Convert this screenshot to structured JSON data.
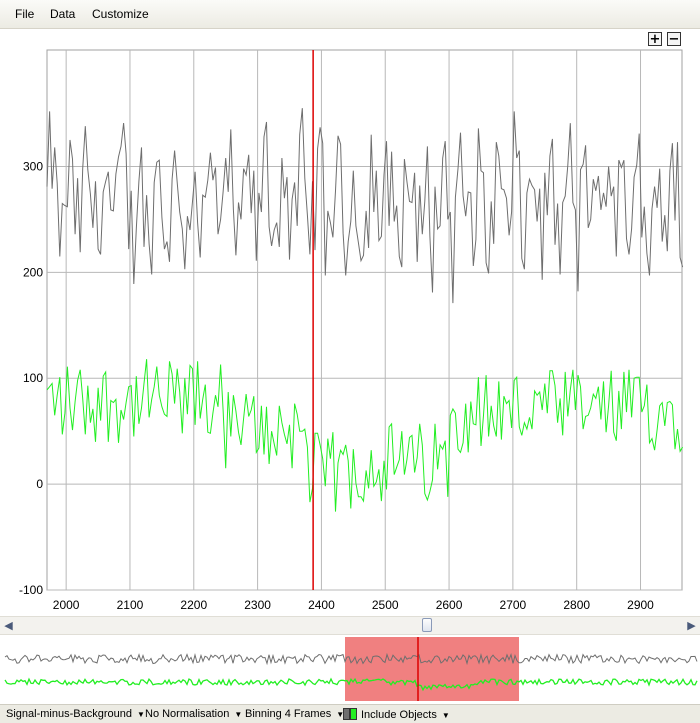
{
  "menu": {
    "items": [
      "File",
      "Data",
      "Customize"
    ]
  },
  "zoom": {
    "plus_label": "+",
    "minus_label": "−"
  },
  "chart_data": {
    "type": "line",
    "xlim": [
      1970,
      2965
    ],
    "ylim": [
      -100,
      410
    ],
    "x_ticks": [
      2000,
      2100,
      2200,
      2300,
      2400,
      2500,
      2600,
      2700,
      2800,
      2900
    ],
    "y_ticks": [
      -100,
      0,
      100,
      200,
      300
    ],
    "grid": true,
    "cursor_x": 2387,
    "x_start": 1970,
    "x_step": 4,
    "series": [
      {
        "color": "#6e6e6e",
        "values": []
      },
      {
        "color": "#22ee22",
        "values": []
      }
    ]
  },
  "overview": {
    "highlight_color": "#f08080",
    "cursor_color": "#dd0000"
  },
  "status": {
    "mode": "Signal-minus-Background",
    "normalisation": "No Normalisation",
    "binning": "Binning 4 Frames",
    "include": "Include Objects"
  },
  "colors": {
    "accent": "#dd0000",
    "series_gray": "#6e6e6e",
    "series_green": "#22ee22"
  }
}
